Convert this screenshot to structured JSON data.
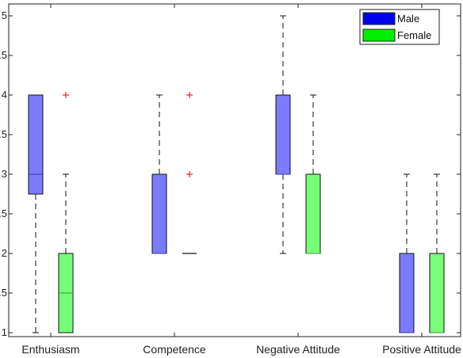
{
  "chart_data": {
    "type": "box",
    "title": "",
    "xlabel": "",
    "ylabel": "",
    "ylim": [
      0.95,
      5.15
    ],
    "yticks": [
      "1",
      "1.5",
      "2",
      "2.5",
      "3",
      "3.5",
      "4",
      "4.5",
      "5"
    ],
    "categories": [
      "Enthusiasm",
      "Competence",
      "Negative Attitude",
      "Positive Attitude"
    ],
    "legend": {
      "placement": "top-right"
    },
    "series": [
      {
        "name": "Male",
        "color": "#7b7bff",
        "boxes": [
          {
            "min": 1,
            "q1": 2.75,
            "median": 3,
            "q3": 4,
            "max": 4,
            "outliers": []
          },
          {
            "min": 2,
            "q1": 2,
            "median": 2,
            "q3": 3,
            "max": 4,
            "outliers": []
          },
          {
            "min": 2,
            "q1": 3,
            "median": 3,
            "q3": 4,
            "max": 5,
            "outliers": []
          },
          {
            "min": 1,
            "q1": 1,
            "median": 1,
            "q3": 2,
            "max": 3,
            "outliers": []
          }
        ]
      },
      {
        "name": "Female",
        "color": "#77ff77",
        "boxes": [
          {
            "min": 1,
            "q1": 1,
            "median": 1.5,
            "q3": 2,
            "max": 3,
            "outliers": [
              4
            ]
          },
          {
            "min": 2,
            "q1": 2,
            "median": 2,
            "q3": 2,
            "max": 2,
            "outliers": [
              3,
              4
            ]
          },
          {
            "min": 2,
            "q1": 2,
            "median": 2,
            "q3": 3,
            "max": 4,
            "outliers": []
          },
          {
            "min": 1,
            "q1": 1,
            "median": 1,
            "q3": 2,
            "max": 3,
            "outliers": []
          }
        ]
      }
    ]
  }
}
